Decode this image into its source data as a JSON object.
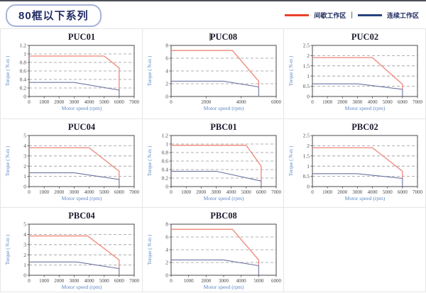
{
  "page": {
    "title_badge": "80框以下系列"
  },
  "legend": {
    "separator": "|",
    "items": [
      {
        "label": "间歇工作区",
        "color": "#e8432b"
      },
      {
        "label": "连续工作区",
        "color": "#27437e"
      }
    ]
  },
  "colors": {
    "chart_red": "#ef8578",
    "chart_blue": "#6a75a0",
    "grid_line": "#979797",
    "plot_border": "#4a4a4a",
    "tick_text": "#4a4a4a",
    "axis_label_blue": "#5b87c5",
    "title_text": "#1c1c30",
    "cell_border": "#e6e6e6"
  },
  "chart_data": [
    {
      "type": "line",
      "title": "PUC01",
      "caret": false,
      "xlabel": "Motor speed (rpm)",
      "ylabel": "Torque ( N-m )",
      "xlim": [
        0,
        7000
      ],
      "xticks": [
        0,
        1000,
        2000,
        3000,
        4000,
        5000,
        6000,
        7000
      ],
      "ylim": [
        0,
        1.2
      ],
      "yticks": [
        0,
        0.2,
        0.4,
        0.6,
        0.8,
        1,
        1.2
      ],
      "ytick_labels": [
        "0",
        "0.2",
        "0.4",
        "0.6",
        "0.8",
        "1",
        "1.2"
      ],
      "grid": "horizontal-dashed",
      "legend_position": "none",
      "series": [
        {
          "name": "间歇工作区",
          "role": "intermittent",
          "points": [
            [
              0,
              0.95
            ],
            [
              5000,
              0.95
            ],
            [
              6000,
              0.67
            ],
            [
              6000,
              0.15
            ]
          ]
        },
        {
          "name": "连续工作区",
          "role": "continuous",
          "points": [
            [
              0,
              0.33
            ],
            [
              3000,
              0.33
            ],
            [
              6000,
              0.15
            ],
            [
              6000,
              0
            ]
          ]
        }
      ]
    },
    {
      "type": "line",
      "title": "PUC08",
      "caret": true,
      "xlabel": "Motor speed (rpm)",
      "ylabel": "Torque ( N-m )",
      "xlim": [
        0,
        6000
      ],
      "xticks": [
        0,
        2000,
        4000,
        6000
      ],
      "ylim": [
        0,
        8
      ],
      "yticks": [
        0,
        2,
        4,
        6,
        8
      ],
      "ytick_labels": [
        "0",
        "2",
        "4",
        "6",
        "8"
      ],
      "grid": "horizontal-dashed",
      "legend_position": "none",
      "series": [
        {
          "name": "间歇工作区",
          "role": "intermittent",
          "points": [
            [
              0,
              7.2
            ],
            [
              3500,
              7.2
            ],
            [
              5000,
              2.4
            ],
            [
              5000,
              1.5
            ]
          ]
        },
        {
          "name": "连续工作区",
          "role": "continuous",
          "points": [
            [
              0,
              2.4
            ],
            [
              3000,
              2.4
            ],
            [
              5000,
              1.5
            ],
            [
              5000,
              0
            ]
          ]
        }
      ]
    },
    {
      "type": "line",
      "title": "PUC02",
      "caret": false,
      "xlabel": "Motor speed (rpm)",
      "ylabel": "Torque ( N-m )",
      "xlim": [
        0,
        7000
      ],
      "xticks": [
        0,
        1000,
        2000,
        3000,
        4000,
        5000,
        6000,
        7000
      ],
      "ylim": [
        0,
        2.5
      ],
      "yticks": [
        0,
        0.5,
        1,
        1.5,
        2,
        2.5
      ],
      "ytick_labels": [
        "0",
        "0.5",
        "1",
        "1.5",
        "2",
        "2.5"
      ],
      "grid": "horizontal-dashed",
      "legend_position": "none",
      "series": [
        {
          "name": "间歇工作区",
          "role": "intermittent",
          "points": [
            [
              0,
              1.9
            ],
            [
              4000,
              1.9
            ],
            [
              6000,
              0.6
            ],
            [
              6000,
              0.35
            ]
          ]
        },
        {
          "name": "连续工作区",
          "role": "continuous",
          "points": [
            [
              0,
              0.62
            ],
            [
              3000,
              0.62
            ],
            [
              6000,
              0.35
            ],
            [
              6000,
              0
            ]
          ]
        }
      ]
    },
    {
      "type": "line",
      "title": "PUC04",
      "caret": false,
      "xlabel": "Motor speed (rpm)",
      "ylabel": "Torque ( N-m )",
      "xlim": [
        0,
        7000
      ],
      "xticks": [
        0,
        1000,
        2000,
        3000,
        4000,
        5000,
        6000,
        7000
      ],
      "ylim": [
        0,
        5
      ],
      "yticks": [
        0,
        1,
        2,
        3,
        4,
        5
      ],
      "ytick_labels": [
        "0",
        "1",
        "2",
        "3",
        "4",
        "5"
      ],
      "grid": "horizontal-dashed",
      "legend_position": "none",
      "series": [
        {
          "name": "间歇工作区",
          "role": "intermittent",
          "points": [
            [
              0,
              3.8
            ],
            [
              4000,
              3.8
            ],
            [
              6000,
              1.5
            ],
            [
              6000,
              0.7
            ]
          ]
        },
        {
          "name": "连续工作区",
          "role": "continuous",
          "points": [
            [
              0,
              1.35
            ],
            [
              3000,
              1.35
            ],
            [
              6000,
              0.7
            ],
            [
              6000,
              0
            ]
          ]
        }
      ]
    },
    {
      "type": "line",
      "title": "PBC01",
      "caret": false,
      "xlabel": "Motor speed (rpm)",
      "ylabel": "Torque ( N-m )",
      "xlim": [
        0,
        7000
      ],
      "xticks": [
        0,
        1000,
        2000,
        3000,
        4000,
        5000,
        6000,
        7000
      ],
      "ylim": [
        0,
        1.2
      ],
      "yticks": [
        0,
        0.2,
        0.4,
        0.6,
        0.8,
        1,
        1.2
      ],
      "ytick_labels": [
        "0",
        "0.2",
        "0.4",
        "0.6",
        "0.8",
        "1",
        "1.2"
      ],
      "grid": "horizontal-dashed",
      "legend_position": "none",
      "series": [
        {
          "name": "间歇工作区",
          "role": "intermittent",
          "points": [
            [
              0,
              0.97
            ],
            [
              5000,
              0.97
            ],
            [
              6000,
              0.48
            ],
            [
              6000,
              0.13
            ]
          ]
        },
        {
          "name": "连续工作区",
          "role": "continuous",
          "points": [
            [
              0,
              0.36
            ],
            [
              3000,
              0.36
            ],
            [
              6000,
              0.13
            ],
            [
              6000,
              0
            ]
          ]
        }
      ]
    },
    {
      "type": "line",
      "title": "PBC02",
      "caret": false,
      "xlabel": "Motor speed (rpm)",
      "ylabel": "Torque ( N-m )",
      "xlim": [
        0,
        7000
      ],
      "xticks": [
        0,
        1000,
        2000,
        3000,
        4000,
        5000,
        6000,
        7000
      ],
      "ylim": [
        0,
        2.5
      ],
      "yticks": [
        0,
        0.5,
        1,
        1.5,
        2,
        2.5
      ],
      "ytick_labels": [
        "0",
        "0.5",
        "1",
        "1.5",
        "2",
        "2.5"
      ],
      "grid": "horizontal-dashed",
      "legend_position": "none",
      "series": [
        {
          "name": "间歇工作区",
          "role": "intermittent",
          "points": [
            [
              0,
              1.9
            ],
            [
              4000,
              1.9
            ],
            [
              6000,
              0.75
            ],
            [
              6000,
              0.4
            ]
          ]
        },
        {
          "name": "连续工作区",
          "role": "continuous",
          "points": [
            [
              0,
              0.63
            ],
            [
              3000,
              0.63
            ],
            [
              6000,
              0.4
            ],
            [
              6000,
              0
            ]
          ]
        }
      ]
    },
    {
      "type": "line",
      "title": "PBC04",
      "caret": false,
      "xlabel": "Motor speed (rpm)",
      "ylabel": "Torque ( N-m )",
      "xlim": [
        0,
        7000
      ],
      "xticks": [
        0,
        1000,
        2000,
        3000,
        4000,
        5000,
        6000,
        7000
      ],
      "ylim": [
        0,
        5
      ],
      "yticks": [
        0,
        1,
        2,
        3,
        4,
        5
      ],
      "ytick_labels": [
        "0",
        "1",
        "2",
        "3",
        "4",
        "5"
      ],
      "grid": "horizontal-dashed",
      "legend_position": "none",
      "series": [
        {
          "name": "间歇工作区",
          "role": "intermittent",
          "points": [
            [
              0,
              3.85
            ],
            [
              3900,
              3.85
            ],
            [
              6000,
              1.5
            ],
            [
              6000,
              0.65
            ]
          ]
        },
        {
          "name": "连续工作区",
          "role": "continuous",
          "points": [
            [
              0,
              1.3
            ],
            [
              3200,
              1.3
            ],
            [
              6000,
              0.65
            ],
            [
              6000,
              0
            ]
          ]
        }
      ]
    },
    {
      "type": "line",
      "title": "PBC08",
      "caret": false,
      "xlabel": "Motor speed (rpm)",
      "ylabel": "Torque ( N-m )",
      "xlim": [
        0,
        6000
      ],
      "xticks": [
        0,
        1000,
        2000,
        3000,
        4000,
        5000,
        6000
      ],
      "ylim": [
        0,
        8
      ],
      "yticks": [
        0,
        2,
        4,
        6,
        8
      ],
      "ytick_labels": [
        "0",
        "2",
        "4",
        "6",
        "8"
      ],
      "grid": "horizontal-dashed",
      "legend_position": "none",
      "series": [
        {
          "name": "间歇工作区",
          "role": "intermittent",
          "points": [
            [
              0,
              7.2
            ],
            [
              3500,
              7.2
            ],
            [
              5000,
              2.4
            ],
            [
              5000,
              1.5
            ]
          ]
        },
        {
          "name": "连续工作区",
          "role": "continuous",
          "points": [
            [
              0,
              2.4
            ],
            [
              3000,
              2.4
            ],
            [
              5000,
              1.5
            ],
            [
              5000,
              0
            ]
          ]
        }
      ]
    }
  ]
}
